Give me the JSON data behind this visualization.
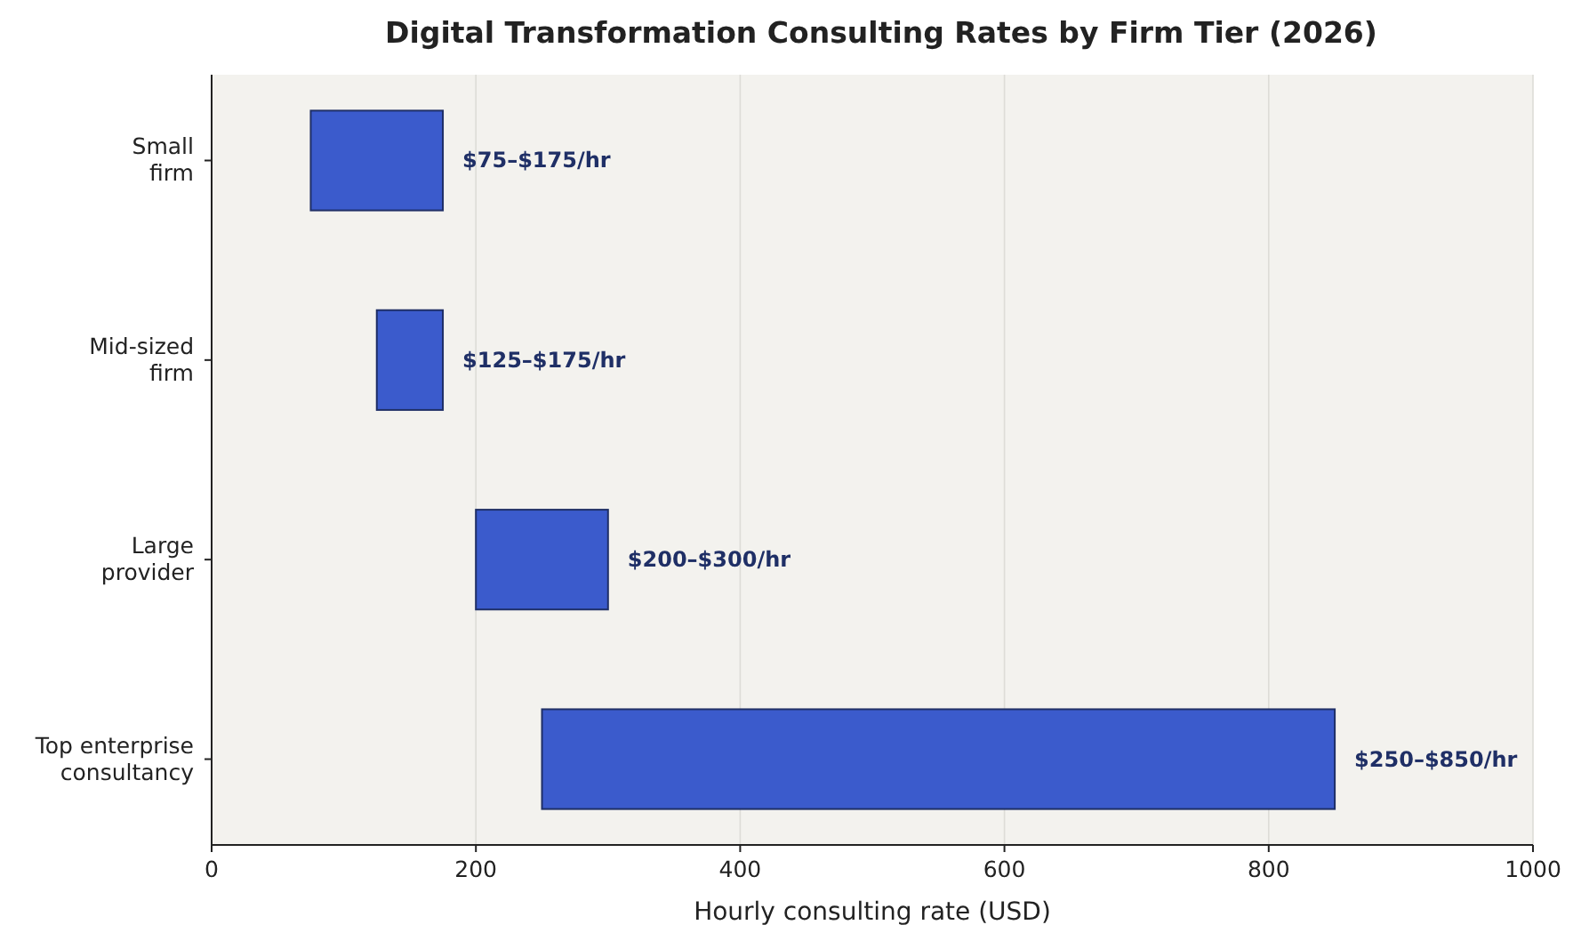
{
  "chart_data": {
    "type": "bar",
    "orientation": "horizontal",
    "title": "Digital Transformation Consulting Rates by Firm Tier (2026)",
    "xlabel": "Hourly consulting rate (USD)",
    "categories": [
      "Small firm",
      "Mid-sized firm",
      "Large provider",
      "Top enterprise consultancy"
    ],
    "base": [
      75,
      125,
      200,
      250
    ],
    "values": [
      100,
      50,
      100,
      600
    ],
    "value_labels": [
      "$75–$175/hr",
      "$125–$175/hr",
      "$200–$300/hr",
      "$250–$850/hr"
    ],
    "color": "#3b5bcc",
    "xlim": [
      0,
      1000
    ],
    "xticks": [
      0,
      200,
      400,
      600,
      800,
      1000
    ],
    "grid": "x"
  }
}
